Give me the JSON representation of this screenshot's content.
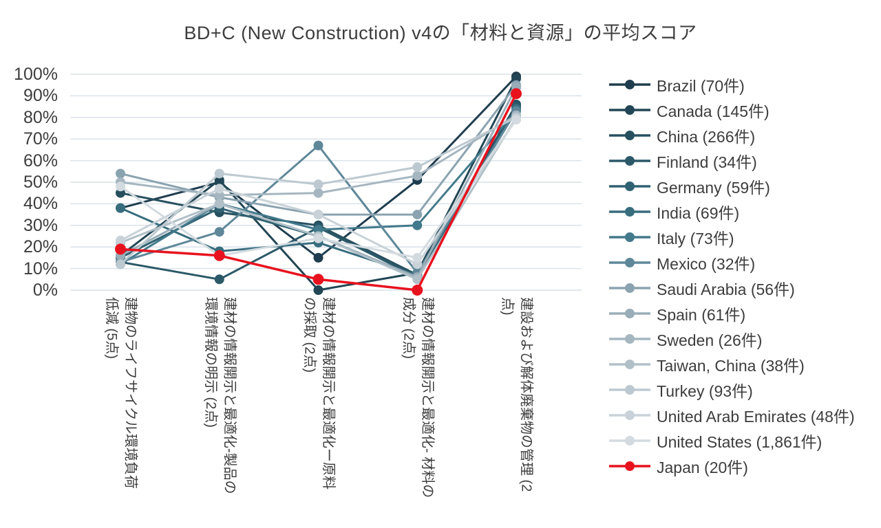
{
  "chart_data": {
    "type": "line",
    "title": "BD+C (New Construction) v4の「材料と資源」の平均スコア",
    "xlabel": "",
    "ylabel": "",
    "ylim": [
      0,
      100
    ],
    "grid": "horizontal",
    "grid_color": "#d9e2ea",
    "legend_position": "right",
    "ytick_labels": [
      "0%",
      "10%",
      "20%",
      "30%",
      "40%",
      "50%",
      "60%",
      "70%",
      "80%",
      "90%",
      "100%"
    ],
    "categories": [
      "建物のライフサイクル環境負荷\n低減 (5点)",
      "建材の情報開示と最適化-製品の\n環境情報の明示 (2点)",
      "建材の情報開示と最適化ー原料\nの採取 (2点)",
      "建材の情報開示と最適化- 材料の\n成分 (2点)",
      "建設および解体廃棄物の管理 (2\n点)"
    ],
    "series": [
      {
        "label": "Brazil (70件)",
        "color": "#1f3d4e",
        "values": [
          38,
          50,
          15,
          51,
          99
        ]
      },
      {
        "label": "Canada (145件)",
        "color": "#224655",
        "values": [
          16,
          51,
          0,
          8,
          98
        ]
      },
      {
        "label": "China (266件)",
        "color": "#27505f",
        "values": [
          45,
          36,
          30,
          7,
          86
        ]
      },
      {
        "label": "Finland (34件)",
        "color": "#2b5968",
        "values": [
          13,
          5,
          29,
          6,
          85
        ]
      },
      {
        "label": "Germany (59件)",
        "color": "#306272",
        "values": [
          15,
          38,
          25,
          6,
          84
        ]
      },
      {
        "label": "India (69件)",
        "color": "#386d7e",
        "values": [
          38,
          18,
          22,
          7,
          84
        ]
      },
      {
        "label": "Italy (73件)",
        "color": "#42798b",
        "values": [
          12,
          40,
          28,
          30,
          83
        ]
      },
      {
        "label": "Mexico (32件)",
        "color": "#5e8799",
        "values": [
          13,
          27,
          67,
          8,
          83
        ]
      },
      {
        "label": "Saudi Arabia (56件)",
        "color": "#8ba3b0",
        "values": [
          54,
          43,
          35,
          35,
          95
        ]
      },
      {
        "label": "Spain (61件)",
        "color": "#99adb8",
        "values": [
          16,
          40,
          25,
          6,
          94
        ]
      },
      {
        "label": "Sweden (26件)",
        "color": "#a5b6c0",
        "values": [
          50,
          44,
          45,
          53,
          81
        ]
      },
      {
        "label": "Taiwan, China (38件)",
        "color": "#b1c0c8",
        "values": [
          22,
          40,
          25,
          5,
          80
        ]
      },
      {
        "label": "Turkey (93件)",
        "color": "#bdc9d0",
        "values": [
          12,
          54,
          49,
          57,
          80
        ]
      },
      {
        "label": "United Arab Emirates (48件)",
        "color": "#c8d2d8",
        "values": [
          23,
          47,
          35,
          12,
          79
        ]
      },
      {
        "label": "United States (1,861件)",
        "color": "#d3dbe0",
        "values": [
          48,
          16,
          24,
          15,
          79
        ]
      },
      {
        "label": "Japan (20件)",
        "color": "#e8121e",
        "values": [
          19,
          16,
          5,
          0,
          91
        ]
      }
    ]
  }
}
